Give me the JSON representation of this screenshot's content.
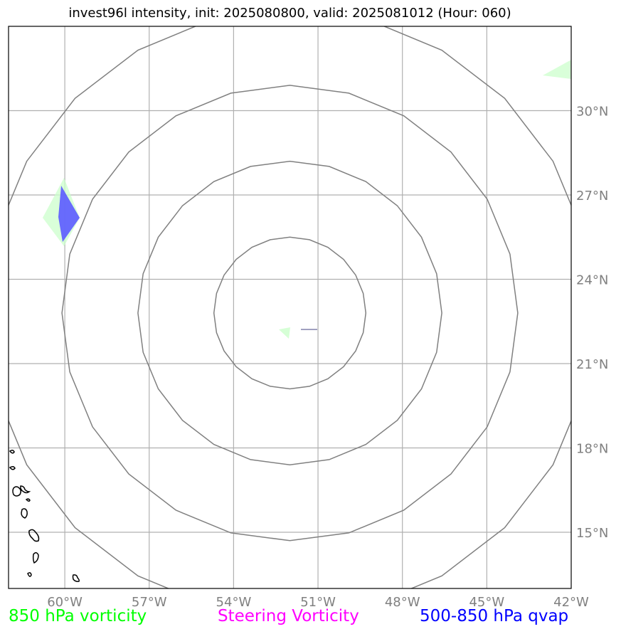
{
  "title": "invest96l intensity, init: 2025080800, valid: 2025081012 (Hour: 060)",
  "map": {
    "lon_range": [
      -62,
      -42
    ],
    "lat_range": [
      13,
      33
    ],
    "lon_ticks": [
      {
        "value": -60,
        "label": "60°W"
      },
      {
        "value": -57,
        "label": "57°W"
      },
      {
        "value": -54,
        "label": "54°W"
      },
      {
        "value": -51,
        "label": "51°W"
      },
      {
        "value": -48,
        "label": "48°W"
      },
      {
        "value": -45,
        "label": "45°W"
      },
      {
        "value": -42,
        "label": "42°W"
      }
    ],
    "lat_ticks": [
      {
        "value": 15,
        "label": "15°N"
      },
      {
        "value": 18,
        "label": "18°N"
      },
      {
        "value": 21,
        "label": "21°N"
      },
      {
        "value": 24,
        "label": "24°N"
      },
      {
        "value": 27,
        "label": "27°N"
      },
      {
        "value": 30,
        "label": "30°N"
      }
    ],
    "range_rings": {
      "center": {
        "lon": -52,
        "lat": 22.8
      },
      "radii_deg": [
        2.7,
        5.4,
        8.1,
        10.8
      ],
      "color": "#808080"
    },
    "gridline_color": "#b0b0b0",
    "coast_color": "#000000"
  },
  "legend": [
    {
      "label": "850 hPa vorticity",
      "color": "#00ff00"
    },
    {
      "label": "Steering Vorticity",
      "color": "#ff00ff"
    },
    {
      "label": "500-850 hPa qvap",
      "color": "#0000ff"
    }
  ]
}
